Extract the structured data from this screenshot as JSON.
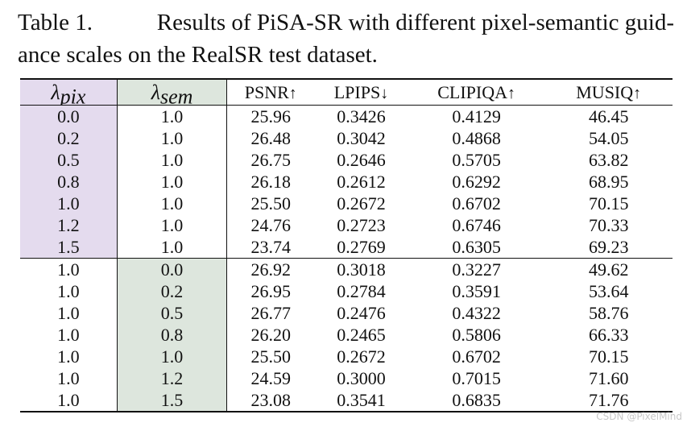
{
  "caption": {
    "label": "Table 1.",
    "line1_text": "Results of PiSA-SR with different pixel-semantic guid-",
    "line2_text": "ance scales on the RealSR test dataset."
  },
  "table": {
    "headers": {
      "lambda_symbol": "λ",
      "pix_subscript": "pix",
      "sem_subscript": "sem",
      "psnr": "PSNR",
      "psnr_arrow": "↑",
      "lpips": "LPIPS",
      "lpips_arrow": "↓",
      "clipiqa": "CLIPIQA",
      "clipiqa_arrow": "↑",
      "musiq": "MUSIQ",
      "musiq_arrow": "↑"
    },
    "group_pix": [
      [
        "0.0",
        "1.0",
        "25.96",
        "0.3426",
        "0.4129",
        "46.45"
      ],
      [
        "0.2",
        "1.0",
        "26.48",
        "0.3042",
        "0.4868",
        "54.05"
      ],
      [
        "0.5",
        "1.0",
        "26.75",
        "0.2646",
        "0.5705",
        "63.82"
      ],
      [
        "0.8",
        "1.0",
        "26.18",
        "0.2612",
        "0.6292",
        "68.95"
      ],
      [
        "1.0",
        "1.0",
        "25.50",
        "0.2672",
        "0.6702",
        "70.15"
      ],
      [
        "1.2",
        "1.0",
        "24.76",
        "0.2723",
        "0.6746",
        "70.33"
      ],
      [
        "1.5",
        "1.0",
        "23.74",
        "0.2769",
        "0.6305",
        "69.23"
      ]
    ],
    "group_sem": [
      [
        "1.0",
        "0.0",
        "26.92",
        "0.3018",
        "0.3227",
        "49.62"
      ],
      [
        "1.0",
        "0.2",
        "26.95",
        "0.2784",
        "0.3591",
        "53.64"
      ],
      [
        "1.0",
        "0.5",
        "26.77",
        "0.2476",
        "0.4322",
        "58.76"
      ],
      [
        "1.0",
        "0.8",
        "26.20",
        "0.2465",
        "0.5806",
        "66.33"
      ],
      [
        "1.0",
        "1.0",
        "25.50",
        "0.2672",
        "0.6702",
        "70.15"
      ],
      [
        "1.0",
        "1.2",
        "24.59",
        "0.3000",
        "0.7015",
        "71.60"
      ],
      [
        "1.0",
        "1.5",
        "23.08",
        "0.3541",
        "0.6835",
        "71.76"
      ]
    ]
  },
  "colors": {
    "pix_highlight": "#e4dbee",
    "sem_highlight": "#dde6dd"
  },
  "watermark": "CSDN @PixelMind"
}
